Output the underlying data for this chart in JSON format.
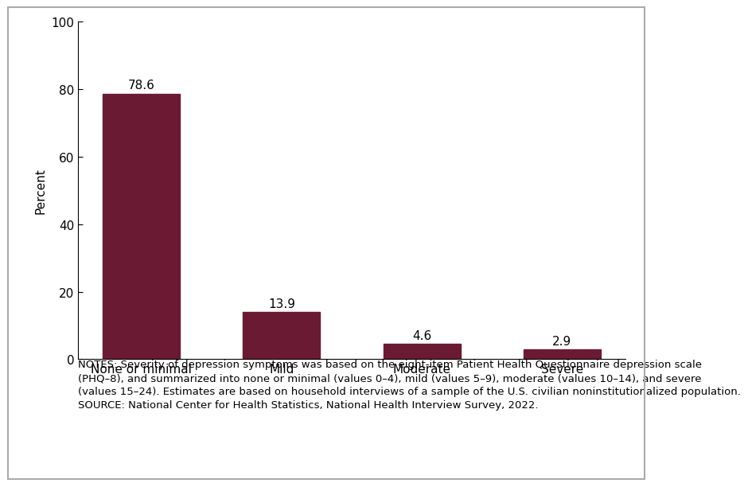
{
  "categories": [
    "None or minimal",
    "Mild",
    "Moderate",
    "Severe"
  ],
  "values": [
    78.6,
    13.9,
    4.6,
    2.9
  ],
  "bar_color": "#6B1A34",
  "ylabel": "Percent",
  "ylim": [
    0,
    100
  ],
  "yticks": [
    0,
    20,
    40,
    60,
    80,
    100
  ],
  "value_labels": [
    "78.6",
    "13.9",
    "4.6",
    "2.9"
  ],
  "notes_line1": "NOTES: Severity of depression symptoms was based on the eight-item Patient Health Questionnaire depression scale",
  "notes_line2": "(PHQ–8), and summarized into none or minimal (values 0–4), mild (values 5–9), moderate (values 10–14), and severe",
  "notes_line3": "(values 15–24). Estimates are based on household interviews of a sample of the U.S. civilian noninstitutionalized population.",
  "notes_line4": "SOURCE: National Center for Health Statistics, National Health Interview Survey, 2022.",
  "background_color": "#FFFFFF",
  "border_color": "#AAAAAA",
  "label_fontsize": 11,
  "tick_fontsize": 11,
  "ylabel_fontsize": 11,
  "notes_fontsize": 9.5
}
